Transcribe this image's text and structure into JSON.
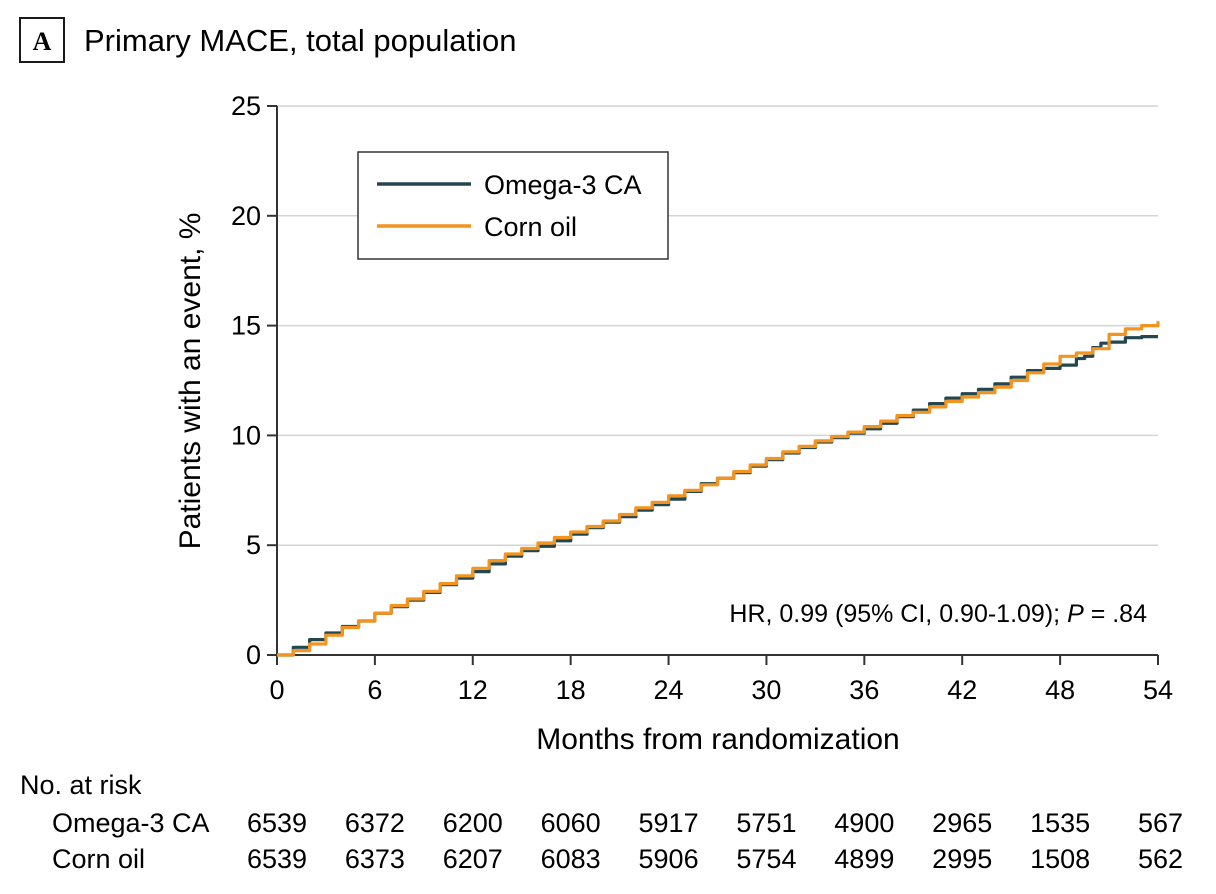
{
  "panel_label": "A",
  "chart_data": {
    "type": "line",
    "title": "Primary MACE, total population",
    "xlabel": "Months from randomization",
    "ylabel": "Patients with an event, %",
    "xlim": [
      0,
      54
    ],
    "ylim": [
      0,
      25
    ],
    "x_ticks": [
      0,
      6,
      12,
      18,
      24,
      30,
      36,
      42,
      48,
      54
    ],
    "y_ticks": [
      0,
      5,
      10,
      15,
      20,
      25
    ],
    "grid": "horizontal",
    "legend_position": "top-left",
    "series": [
      {
        "name": "Omega-3 CA",
        "color": "#23474f",
        "x": [
          0,
          1,
          2,
          3,
          4,
          5,
          6,
          7,
          8,
          9,
          10,
          11,
          12,
          13,
          14,
          15,
          16,
          17,
          18,
          19,
          20,
          21,
          22,
          23,
          24,
          25,
          26,
          27,
          28,
          29,
          30,
          31,
          32,
          33,
          34,
          35,
          36,
          37,
          38,
          39,
          40,
          41,
          42,
          43,
          44,
          45,
          46,
          47,
          48,
          49,
          49.5,
          50,
          50.5,
          51,
          52,
          53,
          54
        ],
        "y": [
          0,
          0.35,
          0.7,
          1.0,
          1.3,
          1.55,
          1.9,
          2.2,
          2.5,
          2.85,
          3.2,
          3.5,
          3.8,
          4.15,
          4.5,
          4.75,
          4.95,
          5.2,
          5.5,
          5.8,
          6.05,
          6.3,
          6.6,
          6.85,
          7.1,
          7.45,
          7.8,
          8.05,
          8.3,
          8.6,
          8.9,
          9.2,
          9.45,
          9.7,
          9.9,
          10.1,
          10.3,
          10.55,
          10.85,
          11.15,
          11.45,
          11.7,
          11.9,
          12.1,
          12.35,
          12.65,
          12.95,
          13.05,
          13.2,
          13.5,
          13.6,
          14.0,
          14.2,
          14.25,
          14.45,
          14.5,
          14.5
        ]
      },
      {
        "name": "Corn oil",
        "color": "#f2941f",
        "x": [
          0,
          1,
          2,
          3,
          4,
          5,
          6,
          7,
          8,
          9,
          10,
          11,
          12,
          13,
          14,
          15,
          16,
          17,
          18,
          19,
          20,
          21,
          22,
          23,
          24,
          25,
          26,
          27,
          28,
          29,
          30,
          31,
          32,
          33,
          34,
          35,
          36,
          37,
          38,
          39,
          40,
          41,
          42,
          43,
          44,
          45,
          46,
          47,
          48,
          49,
          50,
          51,
          52,
          53,
          54
        ],
        "y": [
          0,
          0.2,
          0.5,
          0.9,
          1.25,
          1.55,
          1.9,
          2.25,
          2.55,
          2.9,
          3.25,
          3.6,
          3.95,
          4.3,
          4.6,
          4.85,
          5.1,
          5.35,
          5.6,
          5.85,
          6.1,
          6.4,
          6.7,
          6.95,
          7.25,
          7.5,
          7.75,
          8.05,
          8.35,
          8.65,
          8.95,
          9.25,
          9.5,
          9.75,
          9.95,
          10.15,
          10.4,
          10.65,
          10.9,
          11.05,
          11.3,
          11.55,
          11.75,
          11.95,
          12.2,
          12.5,
          12.85,
          13.25,
          13.6,
          13.75,
          13.95,
          14.6,
          14.85,
          15.0,
          15.2
        ]
      }
    ],
    "annotation": {
      "prefix": "HR, 0.99 (95% CI, 0.90-1.09); ",
      "italic": "P",
      "suffix": " = .84"
    },
    "risk_table": {
      "header": "No. at risk",
      "rows": [
        {
          "label": "Omega-3 CA",
          "values": [
            "6539",
            "6372",
            "6200",
            "6060",
            "5917",
            "5751",
            "4900",
            "2965",
            "1535",
            "567"
          ]
        },
        {
          "label": "Corn oil",
          "values": [
            "6539",
            "6373",
            "6207",
            "6083",
            "5906",
            "5754",
            "4899",
            "2995",
            "1508",
            "562"
          ]
        }
      ]
    }
  }
}
